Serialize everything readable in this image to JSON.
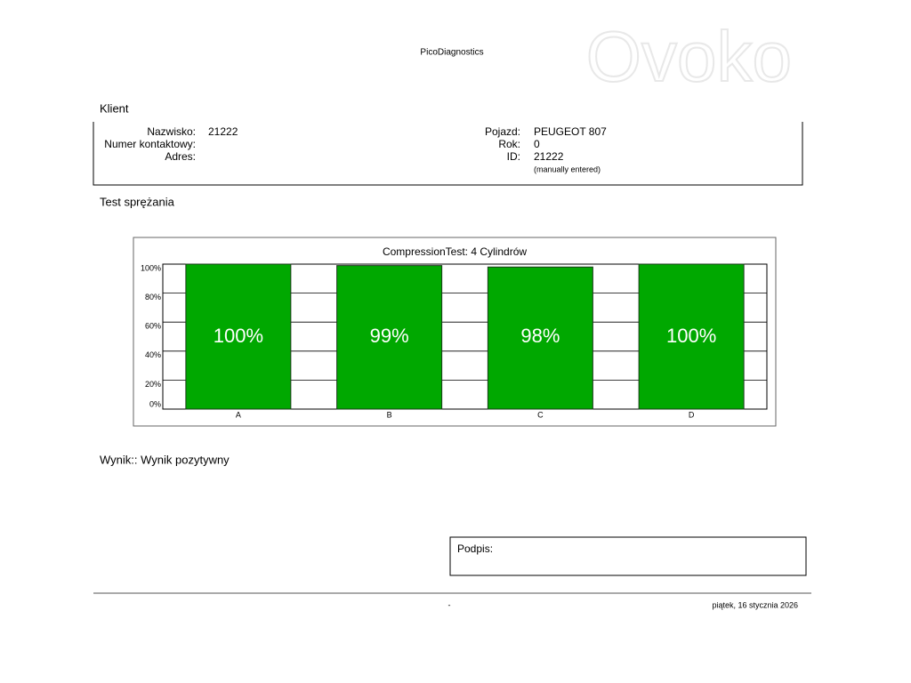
{
  "header": {
    "title": "PicoDiagnostics",
    "watermark": "Ovoko"
  },
  "client": {
    "title": "Klient",
    "left": [
      {
        "label": "Nazwisko:",
        "value": "21222"
      },
      {
        "label": "Numer kontaktowy:",
        "value": ""
      },
      {
        "label": "Adres:",
        "value": ""
      }
    ],
    "right": [
      {
        "label": "Pojazd:",
        "value": "PEUGEOT 807"
      },
      {
        "label": "Rok:",
        "value": "0"
      },
      {
        "label": "ID:",
        "value": "21222"
      }
    ],
    "id_note": "(manually entered)"
  },
  "section_title": "Test sprężania",
  "chart_data": {
    "type": "bar",
    "title": "CompressionTest: 4 Cylindrów",
    "categories": [
      "A",
      "B",
      "C",
      "D"
    ],
    "values": [
      100,
      99,
      98,
      100
    ],
    "value_labels": [
      "100%",
      "99%",
      "98%",
      "100%"
    ],
    "color": "#00a800",
    "ylim": [
      0,
      100
    ],
    "yticks": [
      {
        "value": 0,
        "label": "0%"
      },
      {
        "value": 20,
        "label": "20%"
      },
      {
        "value": 40,
        "label": "40%"
      },
      {
        "value": 60,
        "label": "60%"
      },
      {
        "value": 80,
        "label": "80%"
      },
      {
        "value": 100,
        "label": "100%"
      }
    ],
    "grid": true
  },
  "result": "Wynik:: Wynik pozytywny",
  "signature": {
    "label": "Podpis:"
  },
  "footer": {
    "page": "-",
    "date": "piątek, 16 stycznia 2026"
  }
}
